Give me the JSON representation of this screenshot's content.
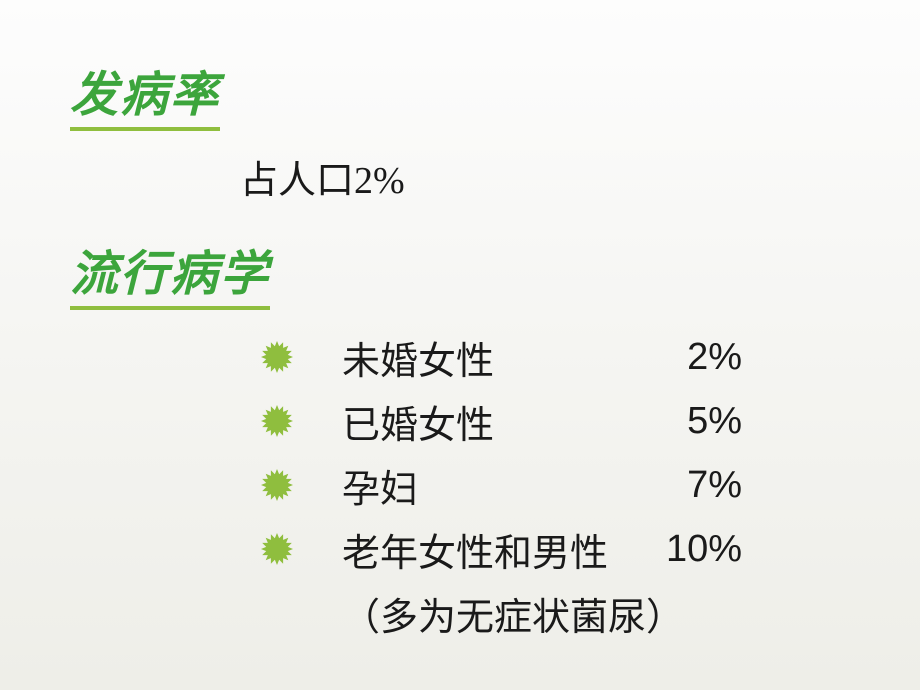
{
  "headings": {
    "incidence": "发病率",
    "epidemiology": "流行病学"
  },
  "subtitle": "占人口2%",
  "bullet": {
    "fill": "#8fbe3e",
    "points": 16,
    "outer_radius": 16,
    "inner_radius": 11
  },
  "items": [
    {
      "label": "未婚女性",
      "value": "2%"
    },
    {
      "label": "已婚女性",
      "value": "5%"
    },
    {
      "label": "孕妇",
      "value": "7%"
    },
    {
      "label": "老年女性和男性",
      "value": "10%"
    }
  ],
  "note": "（多为无症状菌尿）",
  "colors": {
    "heading_text": "#3ca53c",
    "underline": "#8fbe3e",
    "body_text": "#1a1a1a",
    "background_top": "#fdfdfd",
    "background_bottom": "#eeeee8"
  },
  "typography": {
    "heading_fontsize": 48,
    "body_fontsize": 38,
    "heading_italic": true,
    "heading_bold": true
  }
}
